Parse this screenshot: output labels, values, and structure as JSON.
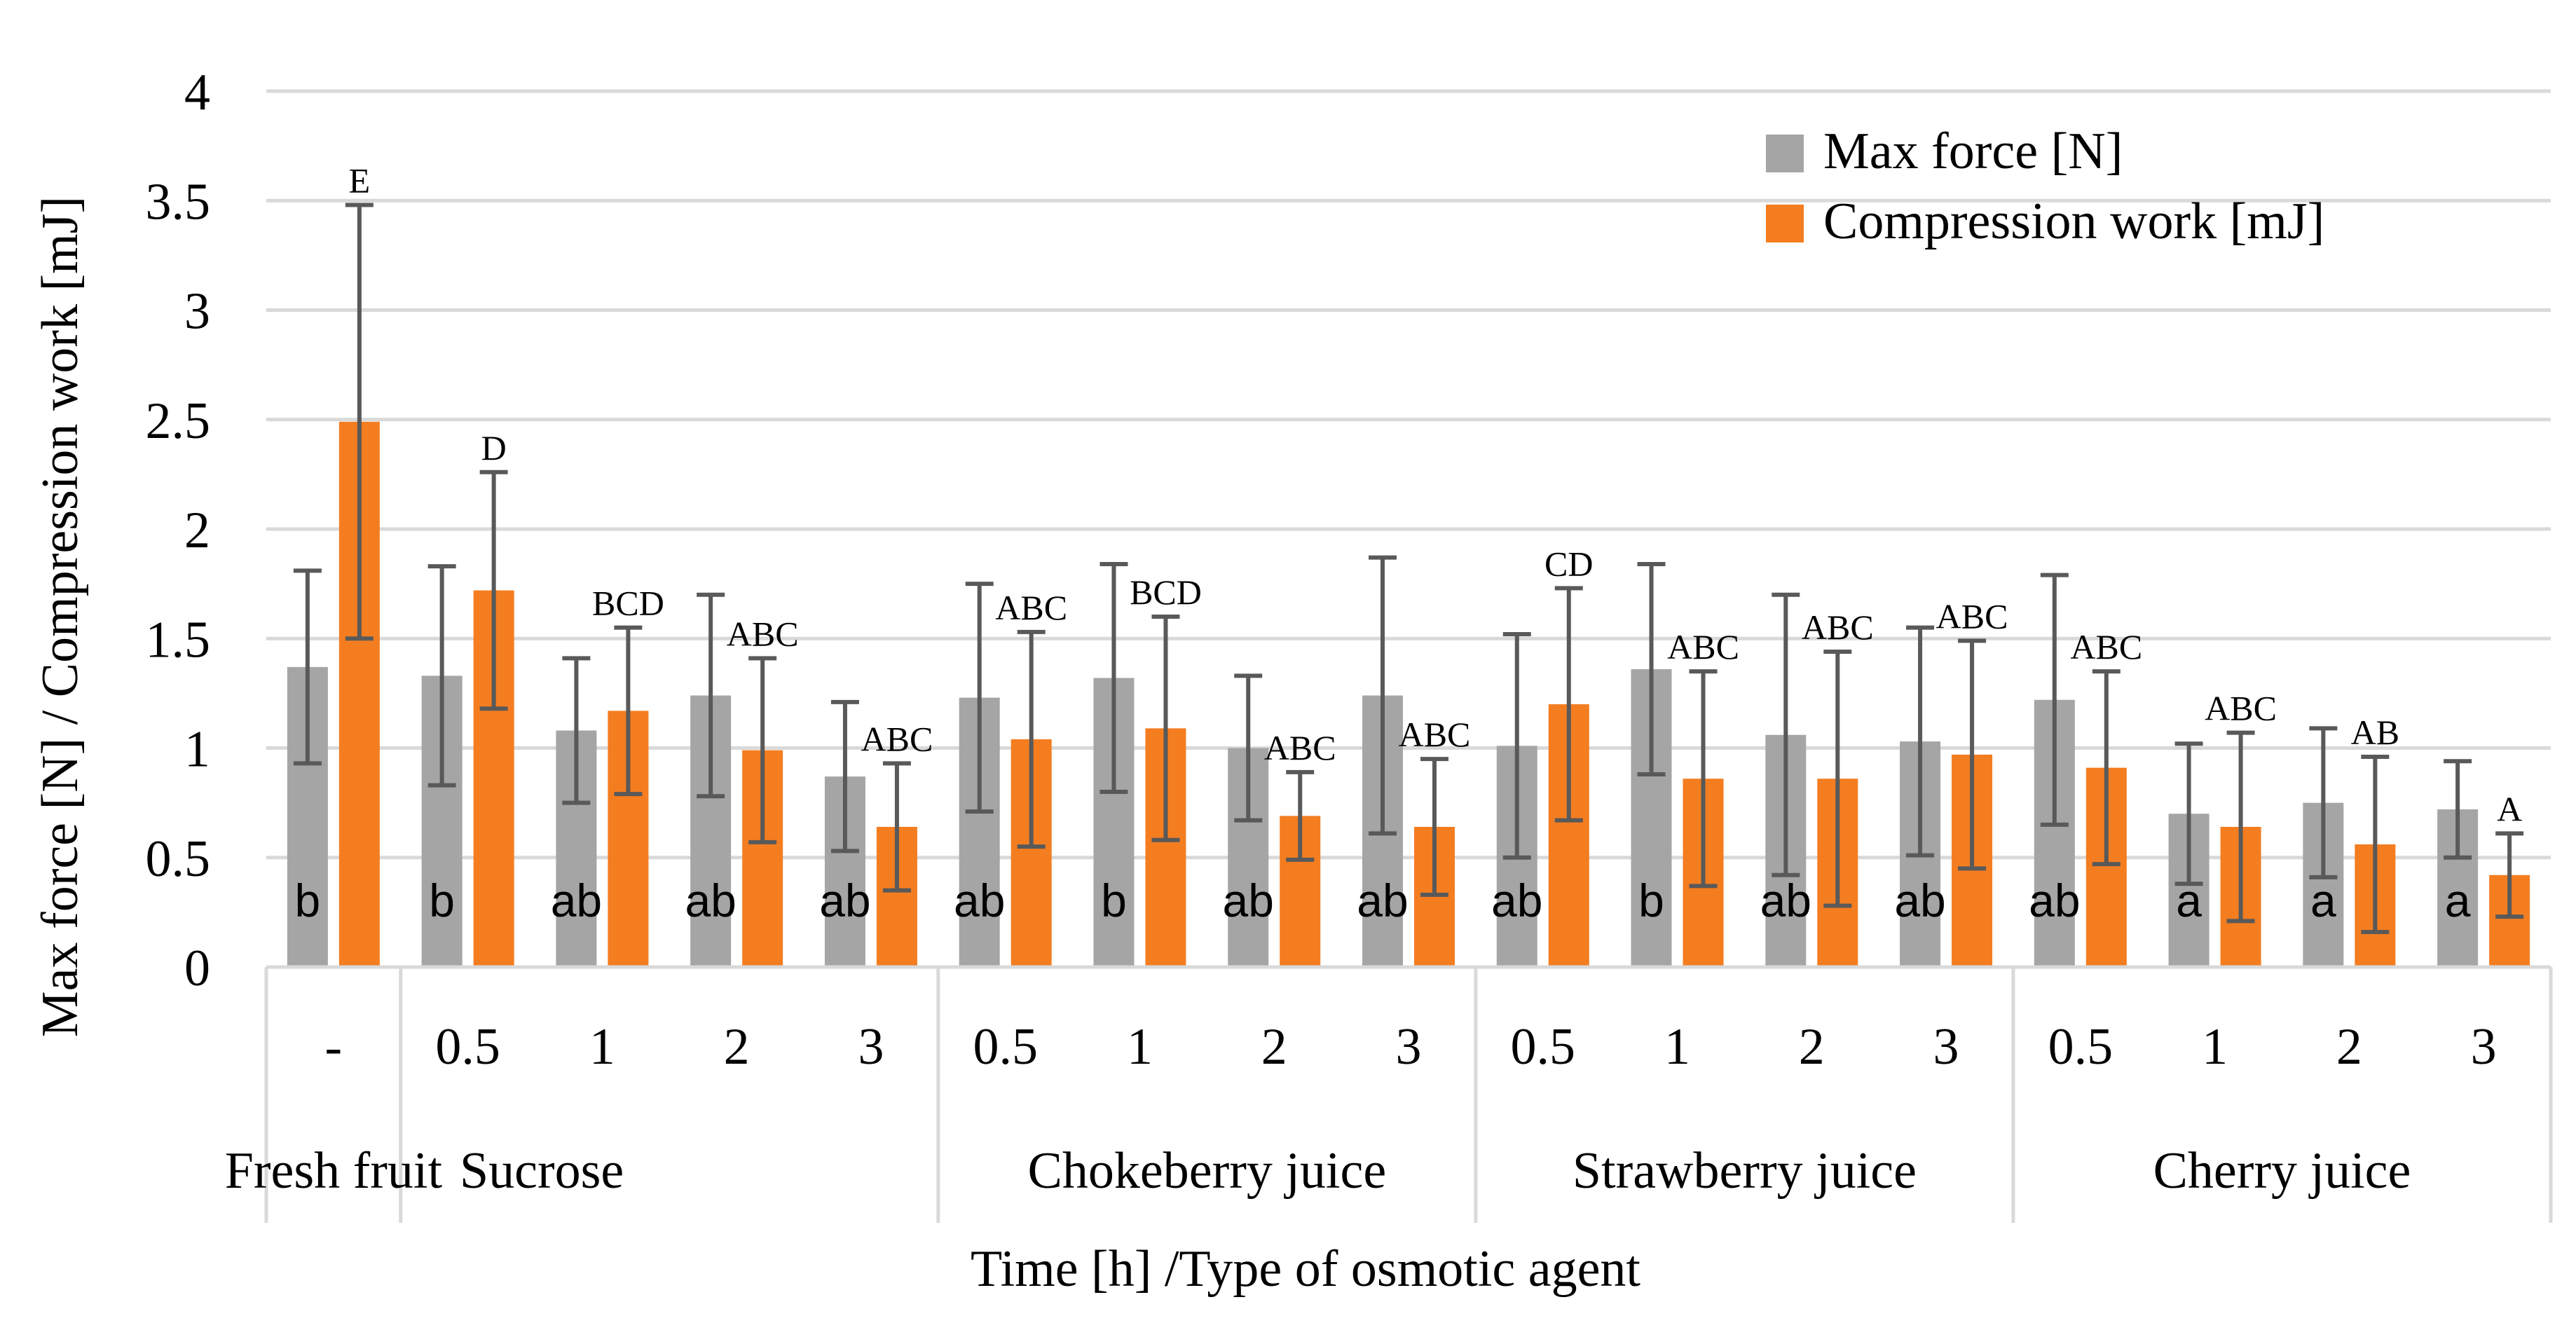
{
  "chart_data": {
    "type": "bar",
    "title": "",
    "ylabel": "Max force [N] / Compression work [mJ]",
    "xlabel": "Time [h] /Type of osmotic agent",
    "ylim": [
      0,
      4
    ],
    "yticks": [
      0,
      0.5,
      1,
      1.5,
      2,
      2.5,
      3,
      3.5,
      4
    ],
    "ytick_labels": [
      "0",
      "0.5",
      "1",
      "1.5",
      "2",
      "2.5",
      "3",
      "3.5",
      "4"
    ],
    "grid": true,
    "legend_position": "top-right",
    "groups": [
      {
        "label": "Fresh fruit",
        "size": 1
      },
      {
        "label": "Sucrose",
        "size": 4
      },
      {
        "label": "Chokeberry juice",
        "size": 4
      },
      {
        "label": "Strawberry juice",
        "size": 4
      },
      {
        "label": "Cherry juice",
        "size": 4
      }
    ],
    "categories": [
      "-",
      "0.5",
      "1",
      "2",
      "3",
      "0.5",
      "1",
      "2",
      "3",
      "0.5",
      "1",
      "2",
      "3",
      "0.5",
      "1",
      "2",
      "3"
    ],
    "series": [
      {
        "name": "Max force [N]",
        "color": "#a5a5a5",
        "values": [
          1.37,
          1.33,
          1.08,
          1.24,
          0.87,
          1.23,
          1.32,
          1.0,
          1.24,
          1.01,
          1.36,
          1.06,
          1.03,
          1.22,
          0.7,
          0.75,
          0.72
        ],
        "errors": [
          0.44,
          0.5,
          0.33,
          0.46,
          0.34,
          0.52,
          0.52,
          0.33,
          0.63,
          0.51,
          0.48,
          0.64,
          0.52,
          0.57,
          0.32,
          0.34,
          0.22
        ],
        "letters": [
          "b",
          "b",
          "ab",
          "ab",
          "ab",
          "ab",
          "b",
          "ab",
          "ab",
          "ab",
          "b",
          "ab",
          "ab",
          "ab",
          "a",
          "a",
          "a"
        ]
      },
      {
        "name": "Compression work [mJ]",
        "color": "#f47d20",
        "values": [
          2.49,
          1.72,
          1.17,
          0.99,
          0.64,
          1.04,
          1.09,
          0.69,
          0.64,
          1.2,
          0.86,
          0.86,
          0.97,
          0.91,
          0.64,
          0.56,
          0.42
        ],
        "errors": [
          0.99,
          0.54,
          0.38,
          0.42,
          0.29,
          0.49,
          0.51,
          0.2,
          0.31,
          0.53,
          0.49,
          0.58,
          0.52,
          0.44,
          0.43,
          0.4,
          0.19
        ],
        "letters": [
          "E",
          "D",
          "BCD",
          "ABC",
          "ABC",
          "ABC",
          "BCD",
          "ABC",
          "ABC",
          "CD",
          "ABC",
          "ABC",
          "ABC",
          "ABC",
          "ABC",
          "AB",
          "A"
        ]
      }
    ]
  }
}
